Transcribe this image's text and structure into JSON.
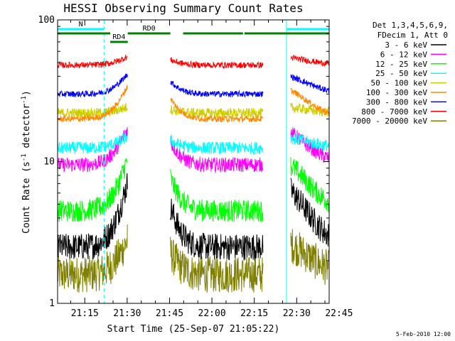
{
  "chart_data": {
    "type": "line",
    "title": "HESSI Observing Summary Count Rates",
    "xlabel": "Start Time (25-Sep-07 21:05:22)",
    "ylabel_main": "Count Rate (s",
    "ylabel_sup": "-1",
    "ylabel_mid": " detector",
    "ylabel_sup2": "-1",
    "ylabel_end": ")",
    "xlim_minutes": [
      5.37,
      101.5
    ],
    "ylim": [
      1,
      100
    ],
    "yscale": "log",
    "x_ticks": [
      {
        "label": "21:15",
        "minute": 15
      },
      {
        "label": "21:30",
        "minute": 30
      },
      {
        "label": "21:45",
        "minute": 45
      },
      {
        "label": "22:00",
        "minute": 60
      },
      {
        "label": "22:15",
        "minute": 75
      },
      {
        "label": "22:30",
        "minute": 90
      },
      {
        "label": "22:45",
        "minute": 105
      }
    ],
    "y_ticks": [
      {
        "label": "1",
        "value": 1
      },
      {
        "label": "10",
        "value": 10
      },
      {
        "label": "100",
        "value": 100
      }
    ],
    "legend_header": [
      "Det 1,3,4,5,6,9,",
      "FDecim 1, Att 0"
    ],
    "series": [
      {
        "name": "3 - 6 keV",
        "color": "#000000",
        "base": 2.5,
        "peak": 14.0,
        "noise": 0.22
      },
      {
        "name": "6 - 12 keV",
        "color": "#ff00ff",
        "base": 9.5,
        "peak": 25.0,
        "noise": 0.12
      },
      {
        "name": "12 - 25 keV",
        "color": "#00ff00",
        "base": 4.5,
        "peak": 18.0,
        "noise": 0.18
      },
      {
        "name": "25 - 50 keV",
        "color": "#00ffff",
        "base": 12.5,
        "peak": 17.0,
        "noise": 0.1
      },
      {
        "name": "50 - 100 keV",
        "color": "#cccc00",
        "base": 22.0,
        "peak": 26.0,
        "noise": 0.08
      },
      {
        "name": "100 - 300 keV",
        "color": "#ff8800",
        "base": 20.0,
        "peak": 48.0,
        "noise": 0.05
      },
      {
        "name": "300 - 800 keV",
        "color": "#0000ff",
        "base": 30.0,
        "peak": 51.0,
        "noise": 0.05
      },
      {
        "name": "800 - 7000 keV",
        "color": "#ff0000",
        "base": 48.0,
        "peak": 60.0,
        "noise": 0.05
      },
      {
        "name": "7000 - 20000 keV",
        "color": "#808000",
        "base": 1.6,
        "peak": 4.0,
        "noise": 0.3
      }
    ],
    "data_segments_minutes": [
      [
        5.37,
        30.2
      ],
      [
        45.3,
        78.1
      ],
      [
        87.9,
        101.5
      ]
    ],
    "peak_minutes": [
      36.5,
      83.0
    ],
    "vertical_lines": [
      {
        "minute": 5.37,
        "color": "#00ffff",
        "style": "solid"
      },
      {
        "minute": 21.8,
        "color": "#00ffff",
        "style": "dashed"
      },
      {
        "minute": 86.4,
        "color": "#00ffff",
        "style": "solid"
      },
      {
        "minute": 101.5,
        "color": "#00ffff",
        "style": "dashed"
      }
    ],
    "top_bars": [
      {
        "label": "N",
        "color": "#00ffff",
        "row": 0,
        "start": 5.37,
        "end": 21.8
      },
      {
        "label": "",
        "color": "#00ffff",
        "row": 0,
        "start": 86.4,
        "end": 101.5
      },
      {
        "label": "RD0",
        "color": "#008000",
        "row": 1,
        "start": 30.2,
        "end": 45.3
      },
      {
        "label": "",
        "color": "#008000",
        "row": 1,
        "start": 5.37,
        "end": 24.0
      },
      {
        "label": "",
        "color": "#008000",
        "row": 1,
        "start": 49.8,
        "end": 71.0
      },
      {
        "label": "",
        "color": "#008000",
        "row": 1,
        "start": 71.5,
        "end": 86.4
      },
      {
        "label": "",
        "color": "#008000",
        "row": 1,
        "start": 86.4,
        "end": 101.5
      },
      {
        "label": "RD4",
        "color": "#008000",
        "row": 2,
        "start": 24.0,
        "end": 30.2
      }
    ],
    "footer": "5-Feb-2010 12:00"
  }
}
